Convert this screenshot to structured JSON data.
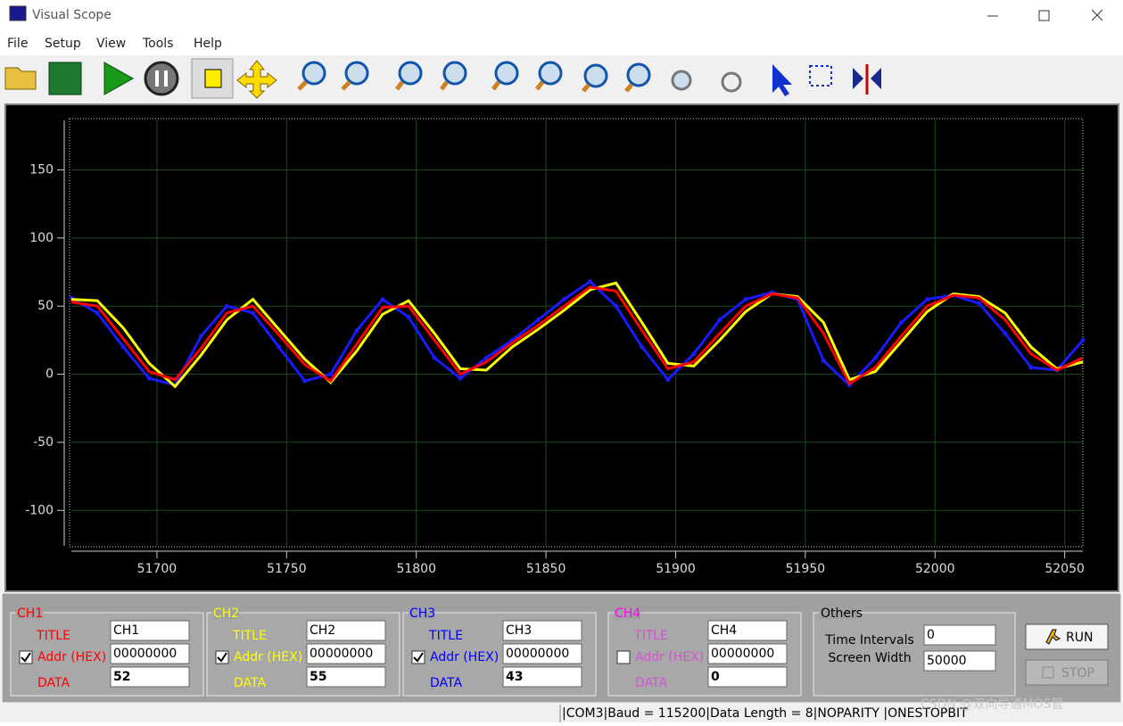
{
  "window": {
    "title": "Visual Scope"
  },
  "menu": [
    "File",
    "Setup",
    "View",
    "Tools",
    "Help"
  ],
  "scope": {
    "type": "line",
    "x": [
      51667,
      51677,
      51687,
      51697,
      51707,
      51717,
      51727,
      51737,
      51747,
      51757,
      51767,
      51777,
      51787,
      51797,
      51807,
      51817,
      51827,
      51837,
      51847,
      51857,
      51867,
      51877,
      51887,
      51897,
      51907,
      51917,
      51927,
      51937,
      51947,
      51957,
      51967,
      51977,
      51987,
      51997,
      52007,
      52017,
      52027,
      52037,
      52047,
      52057
    ],
    "xlim": [
      51667,
      52057
    ],
    "xticks": [
      51700,
      51750,
      51800,
      51850,
      51900,
      51950,
      52000,
      52050
    ],
    "ylim": [
      -126,
      187
    ],
    "yticks": [
      -100,
      -50,
      0,
      50,
      100,
      150
    ],
    "grid": true,
    "series": [
      {
        "color": "#1a1aff",
        "markers": true,
        "values": [
          56,
          45,
          20,
          -3,
          -8,
          28,
          50,
          45,
          20,
          -5,
          0,
          32,
          55,
          42,
          12,
          -3,
          12,
          25,
          40,
          55,
          68,
          50,
          20,
          -4,
          15,
          40,
          55,
          60,
          55,
          10,
          -8,
          12,
          38,
          55,
          58,
          52,
          30,
          5,
          3,
          25
        ]
      },
      {
        "color": "#ffff00",
        "values": [
          55,
          54,
          34,
          8,
          -9,
          14,
          40,
          55,
          33,
          11,
          -6,
          17,
          44,
          54,
          30,
          4,
          3,
          20,
          33,
          47,
          62,
          67,
          38,
          8,
          6,
          25,
          46,
          59,
          57,
          38,
          -4,
          2,
          24,
          46,
          59,
          57,
          45,
          20,
          4,
          9
        ]
      },
      {
        "color": "#ff0000",
        "values": [
          53,
          50,
          26,
          2,
          -4,
          19,
          45,
          50,
          29,
          7,
          -5,
          22,
          49,
          50,
          25,
          0,
          9,
          23,
          36,
          50,
          64,
          61,
          32,
          4,
          9,
          30,
          50,
          59,
          56,
          30,
          -7,
          5,
          28,
          50,
          58,
          56,
          40,
          15,
          3,
          12
        ]
      }
    ]
  },
  "channels": [
    {
      "name": "CH1",
      "color": "#ff0000",
      "enabled": true,
      "title_label": "TITLE",
      "addr_label": "Addr (HEX)",
      "data_label": "DATA",
      "title": "CH1",
      "addr": "00000000",
      "data": 52
    },
    {
      "name": "CH2",
      "color": "#ffff00",
      "enabled": true,
      "title_label": "TITLE",
      "addr_label": "Addr (HEX)",
      "data_label": "DATA",
      "title": "CH2",
      "addr": "00000000",
      "data": 55
    },
    {
      "name": "CH3",
      "color": "#0000ff",
      "enabled": true,
      "title_label": "TITLE",
      "addr_label": "Addr (HEX)",
      "data_label": "DATA",
      "title": "CH3",
      "addr": "00000000",
      "data": 43
    },
    {
      "name": "CH4",
      "color": "#ff00ff",
      "enabled": false,
      "title_label": "TITLE",
      "addr_label": "Addr (HEX)",
      "data_label": "DATA",
      "title": "CH4",
      "addr": "00000000",
      "data": 0
    }
  ],
  "others": {
    "name": "Others",
    "time_intervals_label": "Time Intervals",
    "time_intervals": 0,
    "screen_width_label": "Screen Width",
    "screen_width": 50000
  },
  "buttons": {
    "run": "RUN",
    "stop": "STOP"
  },
  "status": "|COM3|Baud = 115200|Data Length = 8|NOPARITY  |ONESTOPBIT",
  "watermark": "CSDN @双向导通MOS管"
}
